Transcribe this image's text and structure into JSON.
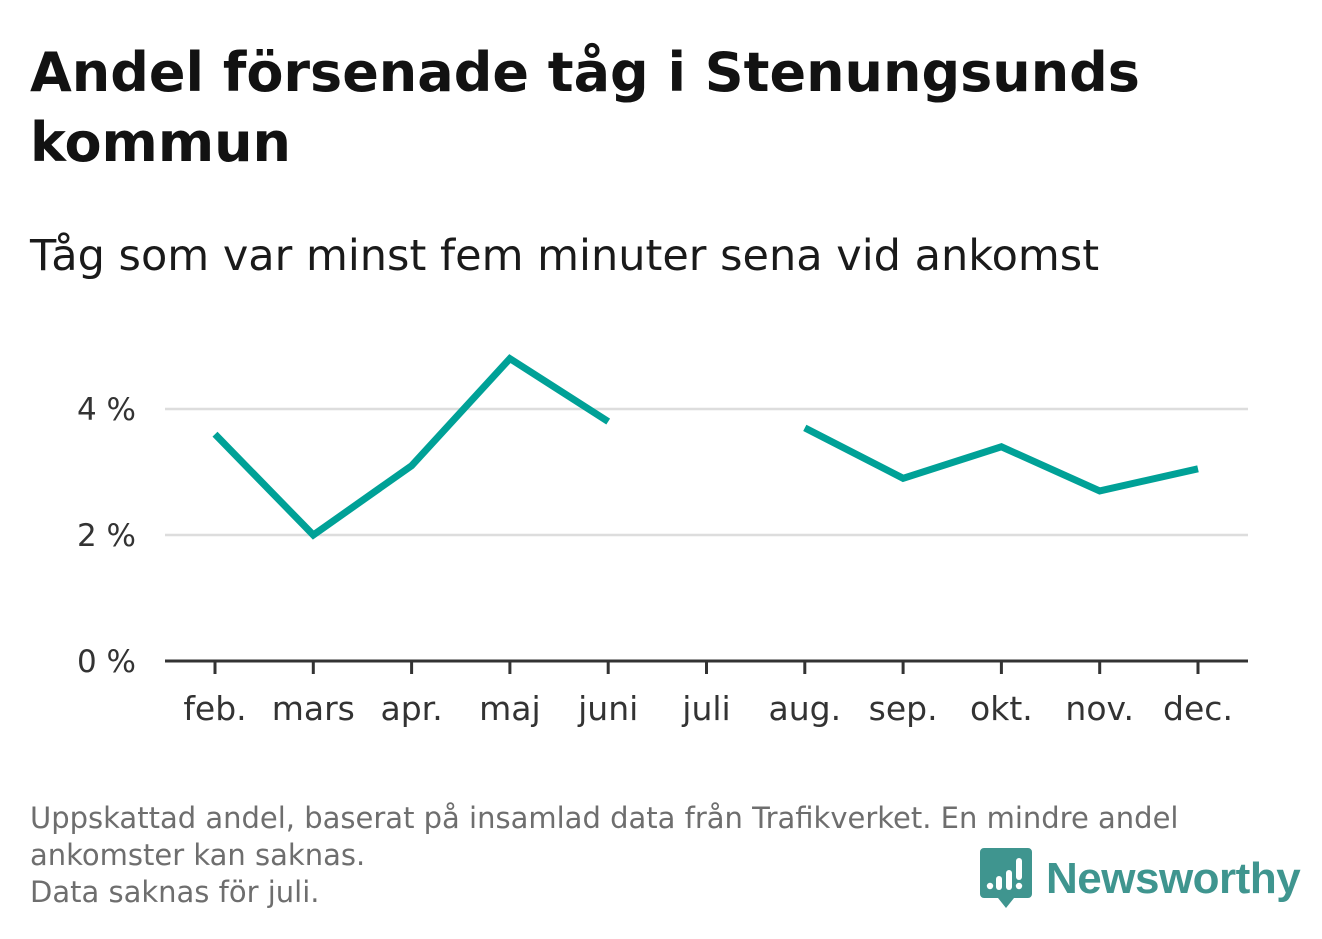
{
  "header": {
    "title": "Andel försenade tåg i Stenungsunds kommun",
    "subtitle": "Tåg som var minst fem minuter sena vid ankomst"
  },
  "chart_data": {
    "type": "line",
    "categories": [
      "feb.",
      "mars",
      "apr.",
      "maj",
      "juni",
      "juli",
      "aug.",
      "sep.",
      "okt.",
      "nov.",
      "dec."
    ],
    "series": [
      {
        "values": [
          3.6,
          2.0,
          3.1,
          4.8,
          3.8,
          null,
          3.7,
          2.9,
          3.4,
          2.7,
          3.05
        ]
      }
    ],
    "y_ticks": [
      0,
      2,
      4
    ],
    "y_tick_labels": [
      "0 %",
      "2 %",
      "4 %"
    ],
    "ylim": [
      0,
      5
    ],
    "grid": true,
    "colors": {
      "line": "#00a197",
      "grid": "#dddddd",
      "axis": "#333333"
    }
  },
  "footnote": {
    "line1": "Uppskattad andel, baserat på insamlad data från Trafikverket. En mindre andel",
    "line2": "ankomster kan saknas.",
    "line3": "Data saknas för juli."
  },
  "brand": {
    "name": "Newsworthy",
    "icon": "newsworthy-logo-icon",
    "color": "#3f958f"
  }
}
